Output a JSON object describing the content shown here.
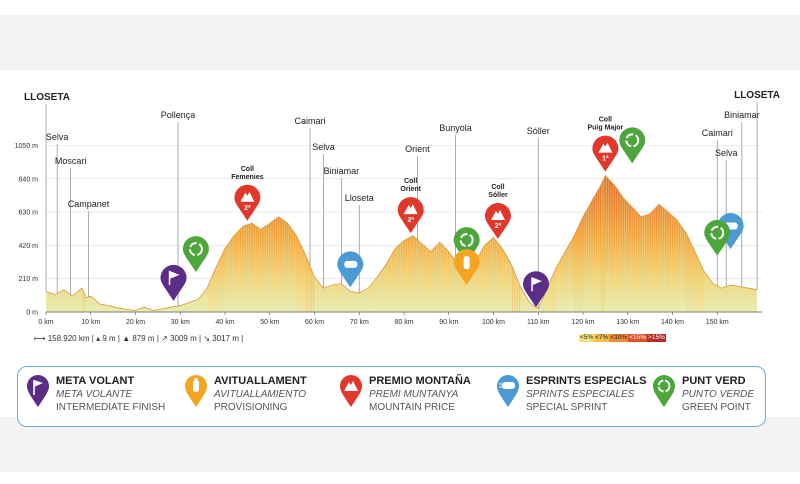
{
  "colors": {
    "low": "#e9ecb4",
    "mid": "#f3d06a",
    "high": "#f4a03a",
    "steep": "#e9612b",
    "extreme": "#c7312b",
    "meta_volant": "#5b2d86",
    "avituallament": "#f3a521",
    "premio_montana": "#e1382b",
    "esprints": "#4a9ad8",
    "punt_verd": "#4da63b"
  },
  "chart_data": {
    "type": "area",
    "x_unit": "km",
    "y_unit": "m",
    "xlim": [
      0,
      160
    ],
    "ylim": [
      0,
      1400
    ],
    "x_ticks": [
      "0 km",
      "10 km",
      "20 km",
      "30 km",
      "40 km",
      "50 km",
      "60 km",
      "70 km",
      "80 km",
      "90 km",
      "100 km",
      "110 km",
      "120 km",
      "130 km",
      "140 km",
      "150 km"
    ],
    "x_tick_values": [
      0,
      10,
      20,
      30,
      40,
      50,
      60,
      70,
      80,
      90,
      100,
      110,
      120,
      130,
      140,
      150
    ],
    "y_ticks": [
      "0 m",
      "210 m",
      "420 m",
      "630 m",
      "840 m",
      "1050 m"
    ],
    "y_tick_values": [
      0,
      210,
      420,
      630,
      840,
      1050
    ],
    "profile": [
      [
        0,
        130
      ],
      [
        2,
        110
      ],
      [
        4,
        140
      ],
      [
        6,
        100
      ],
      [
        8,
        150
      ],
      [
        9,
        90
      ],
      [
        10,
        100
      ],
      [
        12,
        50
      ],
      [
        14,
        40
      ],
      [
        17,
        20
      ],
      [
        20,
        10
      ],
      [
        22,
        30
      ],
      [
        24,
        10
      ],
      [
        26,
        20
      ],
      [
        28,
        30
      ],
      [
        30,
        40
      ],
      [
        32,
        60
      ],
      [
        34,
        80
      ],
      [
        36,
        150
      ],
      [
        38,
        280
      ],
      [
        40,
        400
      ],
      [
        42,
        480
      ],
      [
        44,
        540
      ],
      [
        46,
        560
      ],
      [
        48,
        520
      ],
      [
        50,
        560
      ],
      [
        52,
        600
      ],
      [
        54,
        560
      ],
      [
        56,
        480
      ],
      [
        58,
        360
      ],
      [
        60,
        220
      ],
      [
        62,
        150
      ],
      [
        64,
        170
      ],
      [
        66,
        180
      ],
      [
        68,
        130
      ],
      [
        70,
        120
      ],
      [
        72,
        150
      ],
      [
        74,
        220
      ],
      [
        76,
        300
      ],
      [
        78,
        400
      ],
      [
        80,
        450
      ],
      [
        82,
        480
      ],
      [
        84,
        430
      ],
      [
        86,
        380
      ],
      [
        88,
        440
      ],
      [
        90,
        380
      ],
      [
        92,
        300
      ],
      [
        94,
        220
      ],
      [
        96,
        320
      ],
      [
        98,
        420
      ],
      [
        100,
        470
      ],
      [
        102,
        400
      ],
      [
        104,
        300
      ],
      [
        106,
        160
      ],
      [
        108,
        60
      ],
      [
        110,
        20
      ],
      [
        112,
        150
      ],
      [
        114,
        280
      ],
      [
        116,
        380
      ],
      [
        118,
        480
      ],
      [
        120,
        600
      ],
      [
        122,
        700
      ],
      [
        124,
        800
      ],
      [
        125,
        860
      ],
      [
        127,
        800
      ],
      [
        129,
        720
      ],
      [
        131,
        660
      ],
      [
        133,
        600
      ],
      [
        135,
        620
      ],
      [
        137,
        680
      ],
      [
        139,
        630
      ],
      [
        141,
        580
      ],
      [
        143,
        500
      ],
      [
        145,
        380
      ],
      [
        147,
        260
      ],
      [
        149,
        180
      ],
      [
        151,
        150
      ],
      [
        153,
        170
      ],
      [
        155,
        160
      ],
      [
        157,
        150
      ],
      [
        158.9,
        140
      ]
    ],
    "places": [
      {
        "name": "LLOSETA",
        "km": 0,
        "bold": true
      },
      {
        "name": "Selva",
        "km": 2.5
      },
      {
        "name": "Moscari",
        "km": 5.5
      },
      {
        "name": "Campanet",
        "km": 9.5
      },
      {
        "name": "Pollença",
        "km": 29.5
      },
      {
        "name": "Caimari",
        "km": 59
      },
      {
        "name": "Selva",
        "km": 62
      },
      {
        "name": "Biniamar",
        "km": 66
      },
      {
        "name": "Lloseta",
        "km": 70
      },
      {
        "name": "Orient",
        "km": 83
      },
      {
        "name": "Bunyola",
        "km": 91.5
      },
      {
        "name": "Sóller",
        "km": 110
      },
      {
        "name": "Caimari",
        "km": 150
      },
      {
        "name": "Selva",
        "km": 152
      },
      {
        "name": "Biniamar",
        "km": 155.5
      },
      {
        "name": "LLOSETA",
        "km": 158.9,
        "bold": true
      }
    ],
    "climbs": [
      {
        "title": "Coll",
        "name": "Femenies",
        "km": 45,
        "category": "2ª"
      },
      {
        "title": "Coll",
        "name": "Orient",
        "km": 81.5,
        "category": "2ª"
      },
      {
        "title": "Coll",
        "name": "Sóller",
        "km": 101,
        "category": "2ª"
      },
      {
        "title": "Coll",
        "name": "Puig Major",
        "km": 125,
        "category": "1ª"
      }
    ],
    "markers": [
      {
        "type": "meta_volant",
        "km": 28.5
      },
      {
        "type": "punt_verd",
        "km": 33.5
      },
      {
        "type": "esprints",
        "km": 68
      },
      {
        "type": "punt_verd",
        "km": 94
      },
      {
        "type": "avituallament",
        "km": 94
      },
      {
        "type": "meta_volant",
        "km": 109.5
      },
      {
        "type": "punt_verd",
        "km": 131
      },
      {
        "type": "esprints",
        "km": 153
      },
      {
        "type": "punt_verd",
        "km": 150
      }
    ],
    "gradient_legend": [
      "<5%",
      "<7%",
      "<10%",
      "<15%",
      ">15%"
    ]
  },
  "stats": {
    "distance": "158.920 km",
    "min_alt": "9 m",
    "max_alt": "879 m",
    "climb_up": "3009 m",
    "climb_down": "3017 m"
  },
  "legend": [
    {
      "title": "META VOLANT",
      "es": "META VOLANTE",
      "en": "INTERMEDIATE FINISH",
      "icon": "meta-volant-flag-icon",
      "color": "#5b2d86"
    },
    {
      "title": "AVITUALLAMENT",
      "es": "AVITUALLAMIENTO",
      "en": "PROVISIONING",
      "icon": "avituallament-bottle-icon",
      "color": "#f3a521"
    },
    {
      "title": "PREMIO MONTAÑA",
      "es": "PREMI MUNTANYA",
      "en": "MOUNTAIN PRICE",
      "icon": "premio-montana-mountain-icon",
      "color": "#e1382b"
    },
    {
      "title": "ESPRINTS ESPECIALS",
      "es": "SPRINTS ESPECIALES",
      "en": "SPECIAL SPRINT",
      "icon": "esprints-sprint-icon",
      "color": "#4a9ad8"
    },
    {
      "title": "PUNT VERD",
      "es": "PUNTO VERDE",
      "en": "GREEN POINT",
      "icon": "punt-verd-recycle-icon",
      "color": "#4da63b"
    }
  ]
}
